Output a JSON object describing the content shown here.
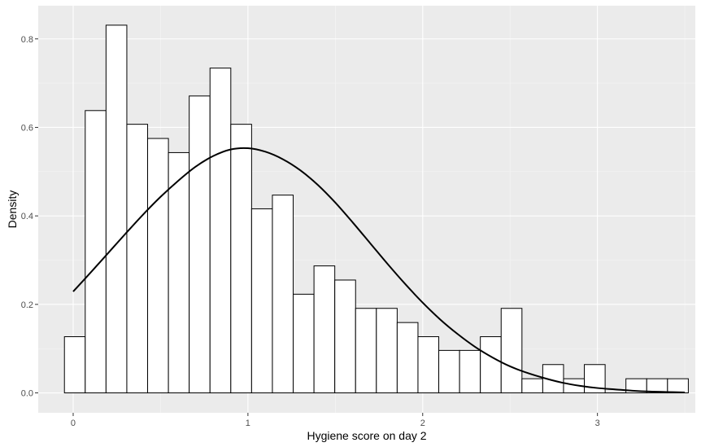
{
  "chart_data": {
    "type": "bar",
    "xlabel": "Hygiene score on day 2",
    "ylabel": "Density",
    "xlim": [
      -0.2,
      3.56
    ],
    "ylim": [
      -0.045,
      0.875
    ],
    "x_ticks": [
      0,
      1,
      2,
      3
    ],
    "y_ticks": [
      0.0,
      0.2,
      0.4,
      0.6,
      0.8
    ],
    "x_tick_labels": [
      "0",
      "1",
      "2",
      "3"
    ],
    "y_tick_labels": [
      "0.0",
      "0.2",
      "0.4",
      "0.6",
      "0.8"
    ],
    "grid": true,
    "bin_width": 0.119,
    "bins_start": -0.05,
    "values": [
      0.127,
      0.638,
      0.831,
      0.607,
      0.575,
      0.543,
      0.671,
      0.734,
      0.607,
      0.416,
      0.447,
      0.223,
      0.287,
      0.255,
      0.191,
      0.191,
      0.159,
      0.127,
      0.096,
      0.096,
      0.127,
      0.191,
      0.032,
      0.064,
      0.032,
      0.064,
      0.0,
      0.032,
      0.032,
      0.032
    ],
    "curve": {
      "x": [
        0.0,
        0.1,
        0.2,
        0.3,
        0.4,
        0.5,
        0.6,
        0.7,
        0.8,
        0.9,
        1.0,
        1.1,
        1.2,
        1.3,
        1.4,
        1.5,
        1.6,
        1.7,
        1.8,
        1.9,
        2.0,
        2.1,
        2.2,
        2.3,
        2.4,
        2.5,
        2.6,
        2.7,
        2.8,
        2.9,
        3.0,
        3.1,
        3.2,
        3.3,
        3.4,
        3.5
      ],
      "y": [
        0.229,
        0.272,
        0.316,
        0.36,
        0.403,
        0.443,
        0.479,
        0.511,
        0.535,
        0.55,
        0.553,
        0.545,
        0.528,
        0.503,
        0.47,
        0.43,
        0.385,
        0.338,
        0.291,
        0.246,
        0.204,
        0.166,
        0.133,
        0.104,
        0.08,
        0.06,
        0.045,
        0.033,
        0.023,
        0.016,
        0.011,
        0.008,
        0.005,
        0.003,
        0.002,
        0.001
      ]
    },
    "colors": {
      "panel_background": "#ebebeb",
      "grid_major": "#ffffff",
      "bar_fill": "#ffffff",
      "bar_stroke": "#000000",
      "curve": "#000000"
    }
  }
}
